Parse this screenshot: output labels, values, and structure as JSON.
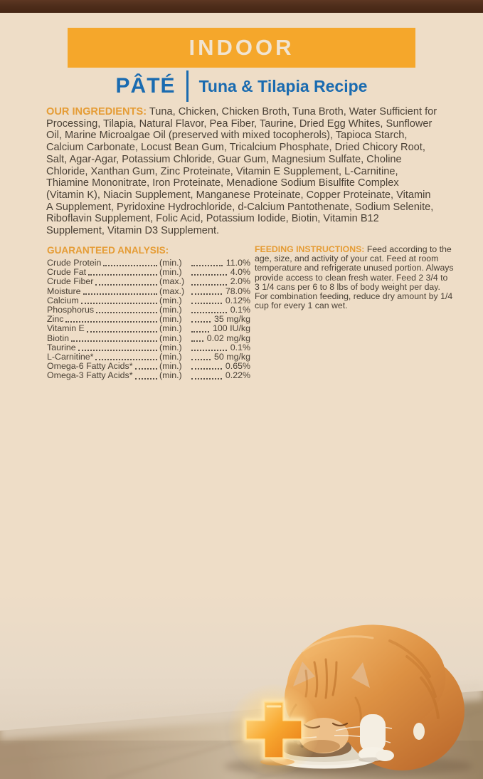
{
  "colors": {
    "background_beige": "#eeddc7",
    "top_edge_brown": "#4e2d1b",
    "banner_orange": "#f5a72b",
    "banner_text_cream": "#f1e4d1",
    "brand_blue": "#1a6bb0",
    "section_heading_orange": "#e59c35",
    "body_text": "#4a4136"
  },
  "banner": {
    "label": "INDOOR"
  },
  "subtitle": {
    "product_type": "PÂTÉ",
    "recipe_name": "Tuna & Tilapia Recipe"
  },
  "ingredients": {
    "heading": "OUR INGREDIENTS:",
    "text": "Tuna, Chicken, Chicken Broth, Tuna Broth, Water Sufficient for Processing, Tilapia, Natural Flavor, Pea Fiber, Taurine, Dried Egg Whites, Sunflower Oil, Marine Microalgae Oil (preserved with mixed tocopherols), Tapioca Starch, Calcium Carbonate, Locust Bean Gum, Tricalcium Phosphate, Dried Chicory Root, Salt, Agar-Agar, Potassium Chloride, Guar Gum, Magnesium Sulfate, Choline Chloride, Xanthan Gum, Zinc Proteinate, Vitamin E Supplement, L-Carnitine, Thiamine Mononitrate, Iron Proteinate, Menadione Sodium Bisulfite Complex (Vitamin K), Niacin Supplement, Manganese Proteinate, Copper Proteinate, Vitamin A Supplement, Pyridoxine Hydrochloride, d-Calcium Pantothenate, Sodium Selenite, Riboflavin Supplement, Folic Acid, Potassium Iodide, Biotin, Vitamin B12 Supplement, Vitamin D3 Supplement."
  },
  "guaranteed_analysis": {
    "heading": "GUARANTEED ANALYSIS:",
    "rows": [
      {
        "nutrient": "Crude Protein",
        "basis": "(min.)",
        "value": "11.0%"
      },
      {
        "nutrient": "Crude Fat",
        "basis": "(min.)",
        "value": "4.0%"
      },
      {
        "nutrient": "Crude Fiber",
        "basis": "(max.)",
        "value": "2.0%"
      },
      {
        "nutrient": "Moisture",
        "basis": "(max.)",
        "value": "78.0%"
      },
      {
        "nutrient": "Calcium",
        "basis": "(min.)",
        "value": "0.12%"
      },
      {
        "nutrient": "Phosphorus",
        "basis": "(min.)",
        "value": "0.1%"
      },
      {
        "nutrient": "Zinc",
        "basis": "(min.)",
        "value": "35 mg/kg"
      },
      {
        "nutrient": "Vitamin E",
        "basis": "(min.)",
        "value": "100 IU/kg"
      },
      {
        "nutrient": "Biotin",
        "basis": "(min.)",
        "value": "0.02 mg/kg"
      },
      {
        "nutrient": "Taurine",
        "basis": "(min.)",
        "value": "0.1%"
      },
      {
        "nutrient": "L-Carnitine*",
        "basis": "(min.)",
        "value": "50 mg/kg"
      },
      {
        "nutrient": "Omega-6 Fatty Acids*",
        "basis": "(min.)",
        "value": "0.65%"
      },
      {
        "nutrient": "Omega-3 Fatty Acids*",
        "basis": "(min.)",
        "value": "0.22%"
      }
    ]
  },
  "feeding_instructions": {
    "heading": "FEEDING INSTRUCTIONS:",
    "text": "Feed according to the age, size, and activity of your cat. Feed at room temperature and refrigerate unused portion. Always provide access to clean fresh water. Feed 2 3/4 to 3 1/4 cans per 6 to 8 lbs of body weight per day. For combination feeding, reduce dry amount by 1/4 cup for every 1 can wet."
  },
  "photo": {
    "subject": "Orange tabby cat eating pâté from a white saucer on a tiled floor",
    "overlay_icon": "glowing-plus-icon"
  }
}
